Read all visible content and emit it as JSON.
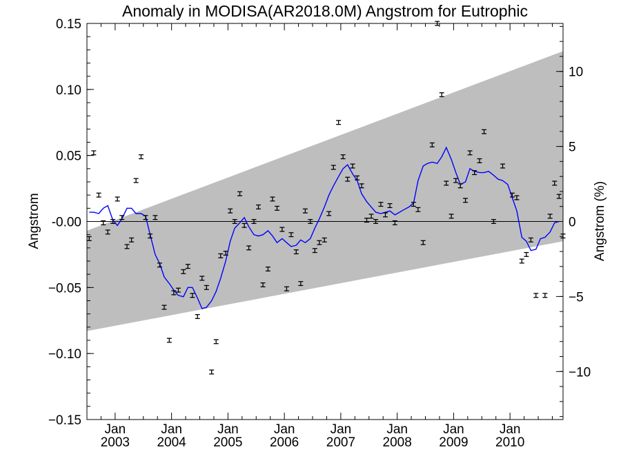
{
  "chart_data": {
    "type": "scatter",
    "title": "Anomaly in MODISA(AR2018.0M) Angstrom for Eutrophic",
    "ylabel": "Angstrom",
    "y2label": "Angstrom (%)",
    "xlim": [
      2002.5,
      2010.94
    ],
    "ylim": [
      -0.15,
      0.15
    ],
    "y2lim": [
      -13.2,
      13.2
    ],
    "y_ticks": [
      {
        "value": 0.15,
        "label": "0.15"
      },
      {
        "value": 0.1,
        "label": "0.10"
      },
      {
        "value": 0.05,
        "label": "0.05"
      },
      {
        "value": 0.0,
        "label": "-0.00"
      },
      {
        "value": -0.05,
        "label": "−0.05"
      },
      {
        "value": -0.1,
        "label": "−0.10"
      },
      {
        "value": -0.15,
        "label": "−0.15"
      }
    ],
    "y2_ticks": [
      {
        "value": 10,
        "label": "10"
      },
      {
        "value": 5,
        "label": "5"
      },
      {
        "value": 0,
        "label": "0"
      },
      {
        "value": -5,
        "label": "−5"
      },
      {
        "value": -10,
        "label": "−10"
      }
    ],
    "x_ticks": [
      {
        "value": 2003.0,
        "month": "Jan",
        "year": "2003"
      },
      {
        "value": 2004.0,
        "month": "Jan",
        "year": "2004"
      },
      {
        "value": 2005.0,
        "month": "Jan",
        "year": "2005"
      },
      {
        "value": 2006.0,
        "month": "Jan",
        "year": "2006"
      },
      {
        "value": 2007.0,
        "month": "Jan",
        "year": "2007"
      },
      {
        "value": 2008.0,
        "month": "Jan",
        "year": "2008"
      },
      {
        "value": 2009.0,
        "month": "Jan",
        "year": "2009"
      },
      {
        "value": 2010.0,
        "month": "Jan",
        "year": "2010"
      }
    ],
    "trend_band": {
      "upper": [
        [
          2002.5,
          -0.007
        ],
        [
          2010.94,
          0.129
        ]
      ],
      "lower": [
        [
          2002.5,
          -0.083
        ],
        [
          2010.94,
          -0.015
        ]
      ],
      "color": "#bebebe"
    },
    "zero_line": 0.0,
    "series": [
      {
        "type": "scatter_errorbar",
        "error": 0.0015,
        "color": "#000000",
        "points": [
          [
            2002.54,
            -0.013
          ],
          [
            2002.62,
            0.052
          ],
          [
            2002.71,
            0.02
          ],
          [
            2002.79,
            -0.001
          ],
          [
            2002.87,
            -0.008
          ],
          [
            2002.96,
            0.0
          ],
          [
            2003.04,
            0.017
          ],
          [
            2003.12,
            0.003
          ],
          [
            2003.21,
            -0.019
          ],
          [
            2003.29,
            -0.014
          ],
          [
            2003.37,
            0.031
          ],
          [
            2003.46,
            0.049
          ],
          [
            2003.54,
            0.003
          ],
          [
            2003.62,
            -0.011
          ],
          [
            2003.71,
            0.003
          ],
          [
            2003.79,
            -0.033
          ],
          [
            2003.87,
            -0.065
          ],
          [
            2003.96,
            -0.09
          ],
          [
            2004.04,
            -0.054
          ],
          [
            2004.12,
            -0.052
          ],
          [
            2004.21,
            -0.038
          ],
          [
            2004.29,
            -0.034
          ],
          [
            2004.37,
            -0.056
          ],
          [
            2004.46,
            -0.072
          ],
          [
            2004.54,
            -0.043
          ],
          [
            2004.62,
            -0.05
          ],
          [
            2004.71,
            -0.114
          ],
          [
            2004.79,
            -0.091
          ],
          [
            2004.87,
            -0.026
          ],
          [
            2004.96,
            -0.024
          ],
          [
            2005.04,
            0.008
          ],
          [
            2005.12,
            0.0
          ],
          [
            2005.21,
            0.021
          ],
          [
            2005.29,
            -0.003
          ],
          [
            2005.37,
            -0.02
          ],
          [
            2005.46,
            0.0
          ],
          [
            2005.54,
            0.011
          ],
          [
            2005.62,
            -0.048
          ],
          [
            2005.71,
            -0.036
          ],
          [
            2005.79,
            0.017
          ],
          [
            2005.87,
            0.01
          ],
          [
            2005.96,
            -0.006
          ],
          [
            2006.04,
            -0.051
          ],
          [
            2006.12,
            -0.01
          ],
          [
            2006.21,
            -0.023
          ],
          [
            2006.29,
            -0.047
          ],
          [
            2006.37,
            0.008
          ],
          [
            2006.46,
            0.0
          ],
          [
            2006.54,
            -0.022
          ],
          [
            2006.62,
            -0.016
          ],
          [
            2006.71,
            -0.014
          ],
          [
            2006.79,
            0.006
          ],
          [
            2006.87,
            0.041
          ],
          [
            2006.96,
            0.075
          ],
          [
            2007.04,
            0.049
          ],
          [
            2007.12,
            0.032
          ],
          [
            2007.21,
            0.042
          ],
          [
            2007.29,
            0.033
          ],
          [
            2007.37,
            0.027
          ],
          [
            2007.46,
            0.001
          ],
          [
            2007.54,
            0.004
          ],
          [
            2007.62,
            0.0
          ],
          [
            2007.71,
            0.013
          ],
          [
            2007.79,
            0.005
          ],
          [
            2007.87,
            0.012
          ],
          [
            2007.96,
            -0.001
          ],
          [
            2008.29,
            0.013
          ],
          [
            2008.37,
            0.009
          ],
          [
            2008.46,
            -0.016
          ],
          [
            2008.62,
            0.058
          ],
          [
            2008.71,
            0.15
          ],
          [
            2008.79,
            0.096
          ],
          [
            2008.87,
            0.029
          ],
          [
            2008.96,
            0.004
          ],
          [
            2009.04,
            0.031
          ],
          [
            2009.12,
            0.027
          ],
          [
            2009.21,
            0.016
          ],
          [
            2009.29,
            0.052
          ],
          [
            2009.37,
            0.037
          ],
          [
            2009.46,
            0.046
          ],
          [
            2009.54,
            0.068
          ],
          [
            2009.71,
            0.0
          ],
          [
            2009.87,
            0.042
          ],
          [
            2010.04,
            0.02
          ],
          [
            2010.12,
            0.018
          ],
          [
            2010.21,
            -0.03
          ],
          [
            2010.29,
            -0.025
          ],
          [
            2010.37,
            -0.014
          ],
          [
            2010.46,
            -0.056
          ],
          [
            2010.62,
            -0.056
          ],
          [
            2010.71,
            0.004
          ],
          [
            2010.79,
            0.029
          ],
          [
            2010.87,
            0.019
          ],
          [
            2010.94,
            -0.011
          ]
        ]
      },
      {
        "type": "line",
        "color": "#0000ff",
        "points": [
          [
            2002.54,
            0.007
          ],
          [
            2002.62,
            0.007
          ],
          [
            2002.71,
            0.006
          ],
          [
            2002.79,
            0.01
          ],
          [
            2002.87,
            0.012
          ],
          [
            2002.96,
            0.001
          ],
          [
            2003.04,
            -0.003
          ],
          [
            2003.12,
            0.002
          ],
          [
            2003.21,
            0.01
          ],
          [
            2003.29,
            0.01
          ],
          [
            2003.37,
            0.006
          ],
          [
            2003.46,
            0.006
          ],
          [
            2003.54,
            0.004
          ],
          [
            2003.62,
            -0.01
          ],
          [
            2003.71,
            -0.025
          ],
          [
            2003.79,
            -0.032
          ],
          [
            2003.87,
            -0.042
          ],
          [
            2003.96,
            -0.047
          ],
          [
            2004.04,
            -0.052
          ],
          [
            2004.12,
            -0.056
          ],
          [
            2004.21,
            -0.057
          ],
          [
            2004.29,
            -0.05
          ],
          [
            2004.37,
            -0.05
          ],
          [
            2004.46,
            -0.058
          ],
          [
            2004.54,
            -0.066
          ],
          [
            2004.62,
            -0.065
          ],
          [
            2004.71,
            -0.06
          ],
          [
            2004.79,
            -0.053
          ],
          [
            2004.87,
            -0.043
          ],
          [
            2004.96,
            -0.03
          ],
          [
            2005.04,
            -0.015
          ],
          [
            2005.12,
            -0.005
          ],
          [
            2005.21,
            -0.001
          ],
          [
            2005.29,
            0.003
          ],
          [
            2005.37,
            -0.004
          ],
          [
            2005.46,
            -0.01
          ],
          [
            2005.54,
            -0.011
          ],
          [
            2005.62,
            -0.01
          ],
          [
            2005.71,
            -0.007
          ],
          [
            2005.79,
            -0.011
          ],
          [
            2005.87,
            -0.016
          ],
          [
            2005.96,
            -0.013
          ],
          [
            2006.04,
            -0.016
          ],
          [
            2006.12,
            -0.019
          ],
          [
            2006.21,
            -0.018
          ],
          [
            2006.29,
            -0.014
          ],
          [
            2006.37,
            -0.016
          ],
          [
            2006.46,
            -0.013
          ],
          [
            2006.54,
            -0.005
          ],
          [
            2006.62,
            0.002
          ],
          [
            2006.71,
            0.011
          ],
          [
            2006.79,
            0.02
          ],
          [
            2006.87,
            0.027
          ],
          [
            2006.96,
            0.034
          ],
          [
            2007.04,
            0.04
          ],
          [
            2007.12,
            0.043
          ],
          [
            2007.21,
            0.036
          ],
          [
            2007.29,
            0.031
          ],
          [
            2007.37,
            0.021
          ],
          [
            2007.46,
            0.015
          ],
          [
            2007.54,
            0.011
          ],
          [
            2007.62,
            0.007
          ],
          [
            2007.71,
            0.006
          ],
          [
            2007.79,
            0.007
          ],
          [
            2007.87,
            0.008
          ],
          [
            2007.96,
            0.005
          ],
          [
            2008.04,
            0.007
          ],
          [
            2008.12,
            0.009
          ],
          [
            2008.21,
            0.011
          ],
          [
            2008.29,
            0.014
          ],
          [
            2008.37,
            0.031
          ],
          [
            2008.46,
            0.042
          ],
          [
            2008.54,
            0.044
          ],
          [
            2008.62,
            0.045
          ],
          [
            2008.71,
            0.044
          ],
          [
            2008.79,
            0.049
          ],
          [
            2008.87,
            0.056
          ],
          [
            2008.96,
            0.047
          ],
          [
            2009.04,
            0.037
          ],
          [
            2009.12,
            0.028
          ],
          [
            2009.21,
            0.03
          ],
          [
            2009.29,
            0.04
          ],
          [
            2009.37,
            0.038
          ],
          [
            2009.46,
            0.037
          ],
          [
            2009.54,
            0.037
          ],
          [
            2009.62,
            0.038
          ],
          [
            2009.71,
            0.035
          ],
          [
            2009.79,
            0.032
          ],
          [
            2009.87,
            0.031
          ],
          [
            2009.96,
            0.028
          ],
          [
            2010.04,
            0.018
          ],
          [
            2010.12,
            0.008
          ],
          [
            2010.21,
            -0.012
          ],
          [
            2010.29,
            -0.015
          ],
          [
            2010.37,
            -0.022
          ],
          [
            2010.46,
            -0.021
          ],
          [
            2010.54,
            -0.013
          ],
          [
            2010.62,
            -0.012
          ],
          [
            2010.71,
            -0.008
          ],
          [
            2010.79,
            -0.001
          ],
          [
            2010.87,
            0.0
          ]
        ]
      }
    ]
  }
}
